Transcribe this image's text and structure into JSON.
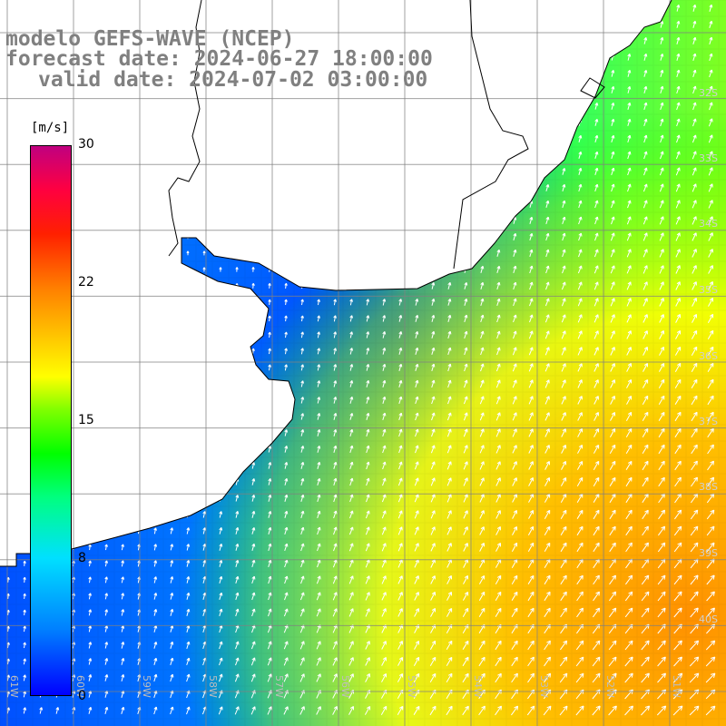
{
  "title": {
    "line1": "modelo GEFS-WAVE (NCEP)",
    "line2": "forecast date: 2024-06-27 18:00:00",
    "line3": "valid date: 2024-07-02 03:00:00"
  },
  "colorbar": {
    "unit": "[m/s]",
    "ticks": [
      "30",
      "22",
      "15",
      "8",
      "0"
    ],
    "tick_values": [
      30,
      22,
      15,
      8,
      0
    ],
    "min": 0,
    "max": 30,
    "colors": [
      "#0000ff",
      "#0080ff",
      "#00e0ff",
      "#00ff80",
      "#00ff00",
      "#80ff00",
      "#ffff00",
      "#ffc000",
      "#ff8000",
      "#ff2000",
      "#ff0040",
      "#c00080"
    ]
  },
  "grid": {
    "lat_labels": [
      "32S",
      "33S",
      "34S",
      "35S",
      "36S",
      "37S",
      "38S",
      "39S",
      "40S"
    ],
    "lon_labels": [
      "61W",
      "60W",
      "59W",
      "58W",
      "57W",
      "56W",
      "55W",
      "54W",
      "53W",
      "52W",
      "51W"
    ]
  },
  "colors": {
    "land": "#ffffff",
    "coast": "#000000",
    "gridline": "#808080",
    "title": "#808080",
    "arrow": "#ffffff"
  }
}
